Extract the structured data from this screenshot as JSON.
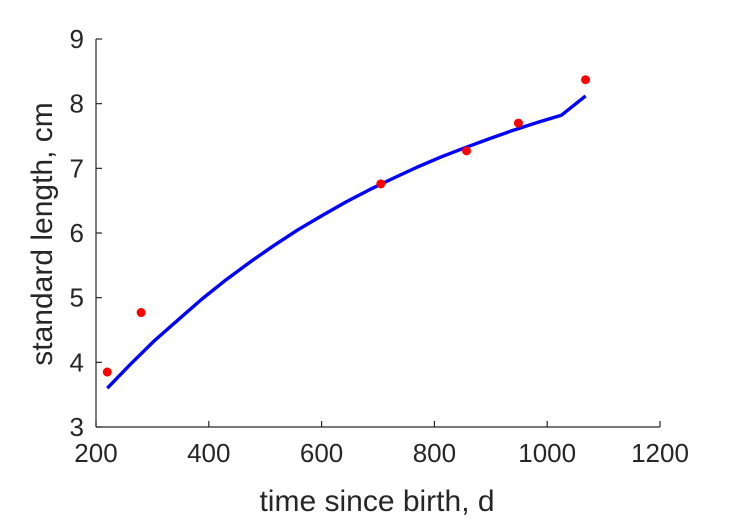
{
  "chart_data": {
    "type": "scatter",
    "xlabel": "time since birth, d",
    "ylabel": "standard length, cm",
    "xlim": [
      200,
      1200
    ],
    "ylim": [
      3,
      9
    ],
    "xticks": [
      200,
      400,
      600,
      800,
      1000,
      1200
    ],
    "yticks": [
      3,
      4,
      5,
      6,
      7,
      8,
      9
    ],
    "grid": false,
    "colors": {
      "points": "#ff0000",
      "curve": "#0000ff",
      "axis": "#262626"
    },
    "series": [
      {
        "type": "scatter",
        "x": [
          220,
          280,
          705,
          857,
          949,
          1068
        ],
        "y": [
          3.85,
          4.77,
          6.76,
          7.27,
          7.7,
          8.37
        ]
      },
      {
        "type": "line",
        "x": [
          220,
          261,
          303,
          346,
          388,
          431,
          473,
          516,
          558,
          601,
          643,
          685,
          728,
          770,
          813,
          855,
          898,
          940,
          983,
          1025,
          1068
        ],
        "y": [
          3.6,
          3.97,
          4.33,
          4.66,
          4.98,
          5.28,
          5.55,
          5.81,
          6.05,
          6.27,
          6.48,
          6.67,
          6.85,
          7.02,
          7.18,
          7.32,
          7.46,
          7.59,
          7.71,
          7.82,
          8.12
        ]
      }
    ]
  }
}
